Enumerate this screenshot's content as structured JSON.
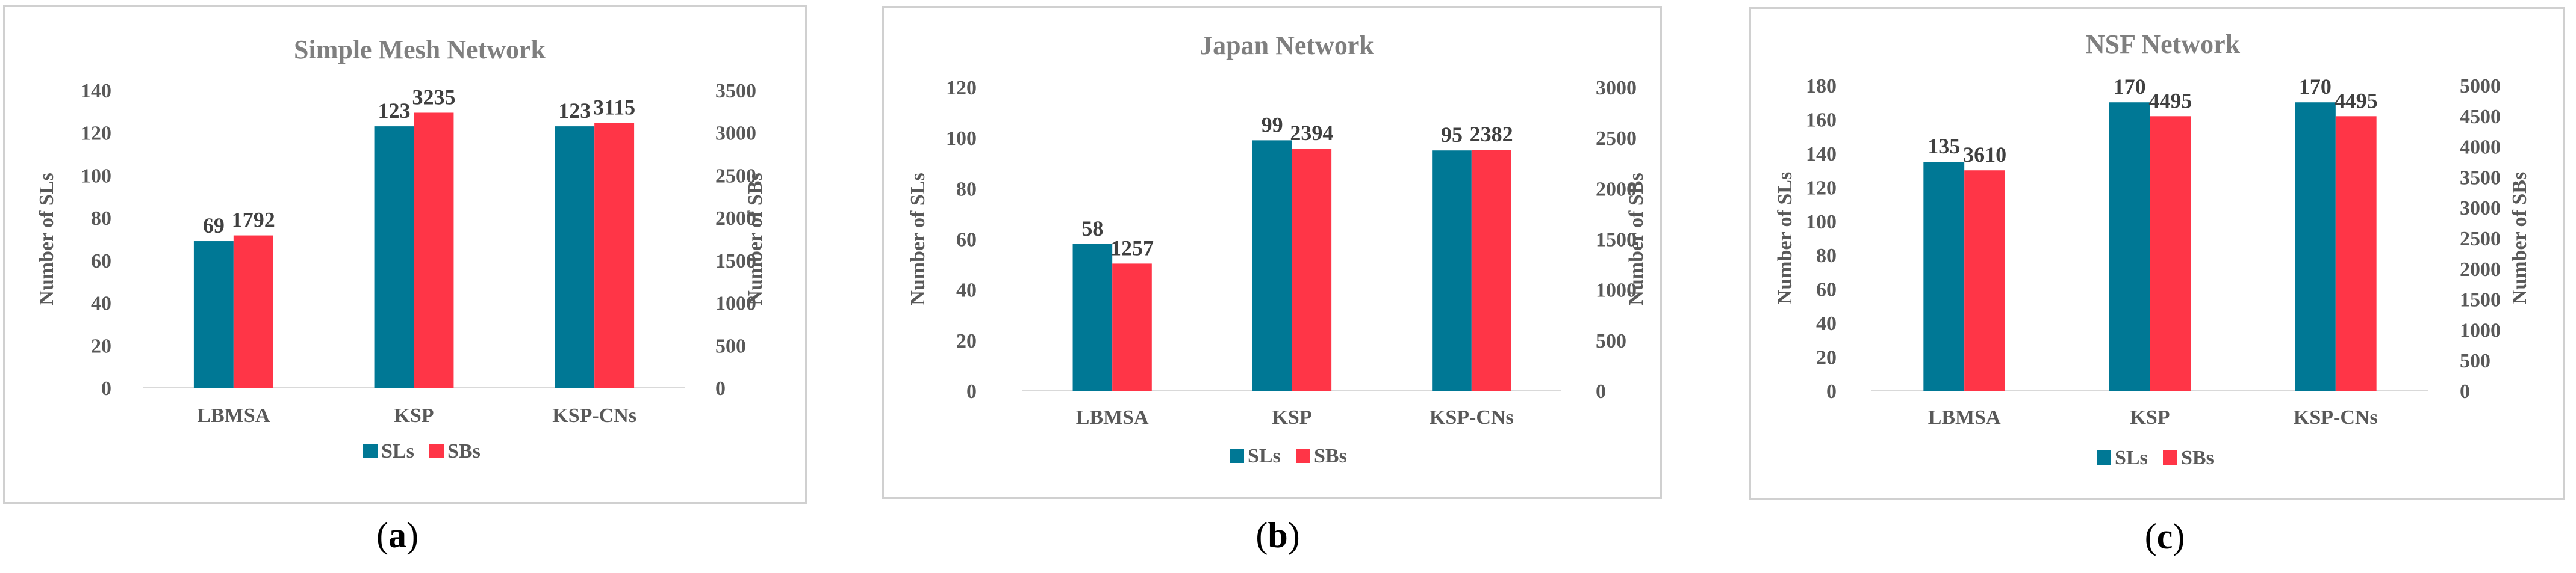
{
  "colors": {
    "sls": "#007895",
    "sbs": "#ff3547"
  },
  "chart_data": [
    {
      "type": "bar",
      "title": "Simple Mesh Network",
      "caption_pre": "(",
      "caption_letter": "a",
      "caption_post": ")",
      "categories": [
        "LBMSA",
        "KSP",
        "KSP-CNs"
      ],
      "ylabel": "Number of SLs",
      "y2label": "Number of SBs",
      "ylim": [
        0,
        140
      ],
      "yticks": [
        "0",
        "20",
        "40",
        "60",
        "80",
        "100",
        "120",
        "140"
      ],
      "y2lim": [
        0,
        3500
      ],
      "y2ticks": [
        "0",
        "500",
        "1000",
        "1500",
        "2000",
        "2500",
        "3000",
        "3500"
      ],
      "series": [
        {
          "name": "SLs",
          "axis": "left",
          "values": [
            69,
            123,
            123
          ],
          "labels": [
            "69",
            "123",
            "123"
          ]
        },
        {
          "name": "SBs",
          "axis": "right",
          "values": [
            1792,
            3235,
            3115
          ],
          "labels": [
            "1792",
            "3235",
            "3115"
          ]
        }
      ],
      "legend": [
        "SLs",
        "SBs"
      ]
    },
    {
      "type": "bar",
      "title": "Japan Network",
      "caption_pre": "(",
      "caption_letter": "b",
      "caption_post": ")",
      "categories": [
        "LBMSA",
        "KSP",
        "KSP-CNs"
      ],
      "ylabel": "Number of SLs",
      "y2label": "Number of SBs",
      "ylim": [
        0,
        120
      ],
      "yticks": [
        "0",
        "20",
        "40",
        "60",
        "80",
        "100",
        "120"
      ],
      "y2lim": [
        0,
        3000
      ],
      "y2ticks": [
        "0",
        "500",
        "1000",
        "1500",
        "2000",
        "2500",
        "3000"
      ],
      "series": [
        {
          "name": "SLs",
          "axis": "left",
          "values": [
            58,
            99,
            95
          ],
          "labels": [
            "58",
            "99",
            "95"
          ]
        },
        {
          "name": "SBs",
          "axis": "right",
          "values": [
            1257,
            2394,
            2382
          ],
          "labels": [
            "1257",
            "2394",
            "2382"
          ]
        }
      ],
      "legend": [
        "SLs",
        "SBs"
      ]
    },
    {
      "type": "bar",
      "title": "NSF Network",
      "caption_pre": "(",
      "caption_letter": "c",
      "caption_post": ")",
      "categories": [
        "LBMSA",
        "KSP",
        "KSP-CNs"
      ],
      "ylabel": "Number of SLs",
      "y2label": "Number of SBs",
      "ylim": [
        0,
        180
      ],
      "yticks": [
        "0",
        "20",
        "40",
        "60",
        "80",
        "100",
        "120",
        "140",
        "160",
        "180"
      ],
      "y2lim": [
        0,
        5000
      ],
      "y2ticks": [
        "0",
        "500",
        "1000",
        "1500",
        "2000",
        "2500",
        "3000",
        "3500",
        "4000",
        "4500",
        "5000"
      ],
      "series": [
        {
          "name": "SLs",
          "axis": "left",
          "values": [
            135,
            170,
            170
          ],
          "labels": [
            "135",
            "170",
            "170"
          ]
        },
        {
          "name": "SBs",
          "axis": "right",
          "values": [
            3610,
            4495,
            4495
          ],
          "labels": [
            "3610",
            "4495",
            "4495"
          ]
        }
      ],
      "legend": [
        "SLs",
        "SBs"
      ]
    }
  ]
}
